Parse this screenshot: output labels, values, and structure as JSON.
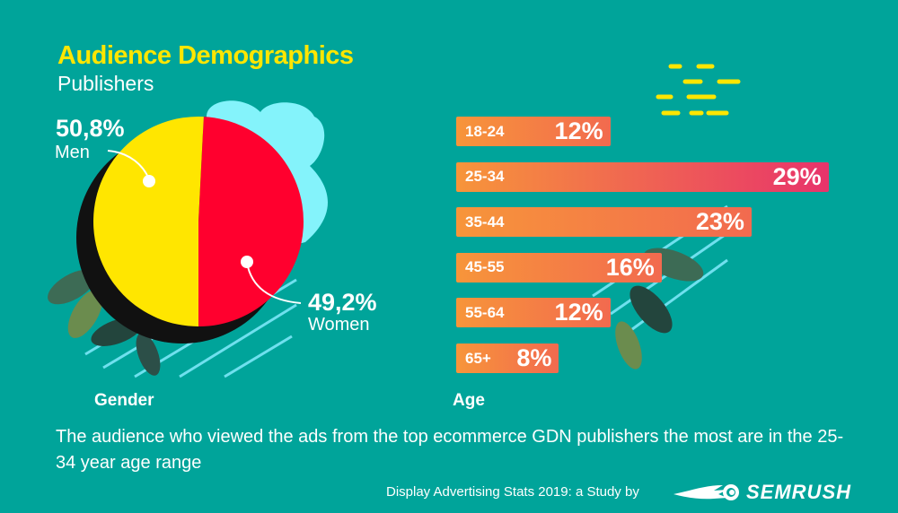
{
  "header": {
    "title": "Audience Demographics",
    "subtitle": "Publishers"
  },
  "chart_data": [
    {
      "type": "pie",
      "title": "Gender",
      "slices": [
        {
          "label": "Women",
          "value": 49.2,
          "display": "49,2%",
          "color": "#ff002e"
        },
        {
          "label": "Men",
          "value": 50.8,
          "display": "50,8%",
          "color": "#ffe600"
        }
      ]
    },
    {
      "type": "bar",
      "orientation": "horizontal",
      "title": "Age",
      "categories": [
        "18-24",
        "25-34",
        "35-44",
        "45-55",
        "55-64",
        "65+"
      ],
      "values": [
        12,
        29,
        23,
        16,
        12,
        8
      ],
      "labels": [
        "12%",
        "29%",
        "23%",
        "16%",
        "12%",
        "8%"
      ],
      "unit": "%",
      "colors": {
        "start": "#f7953a",
        "end": "#e8336b"
      }
    }
  ],
  "summary": "The audience who viewed the ads from the top ecommerce GDN publishers the most are in the 25-34 year age range",
  "footer": {
    "credit": "Display Advertising Stats 2019: a Study by",
    "brand": "semrush"
  }
}
